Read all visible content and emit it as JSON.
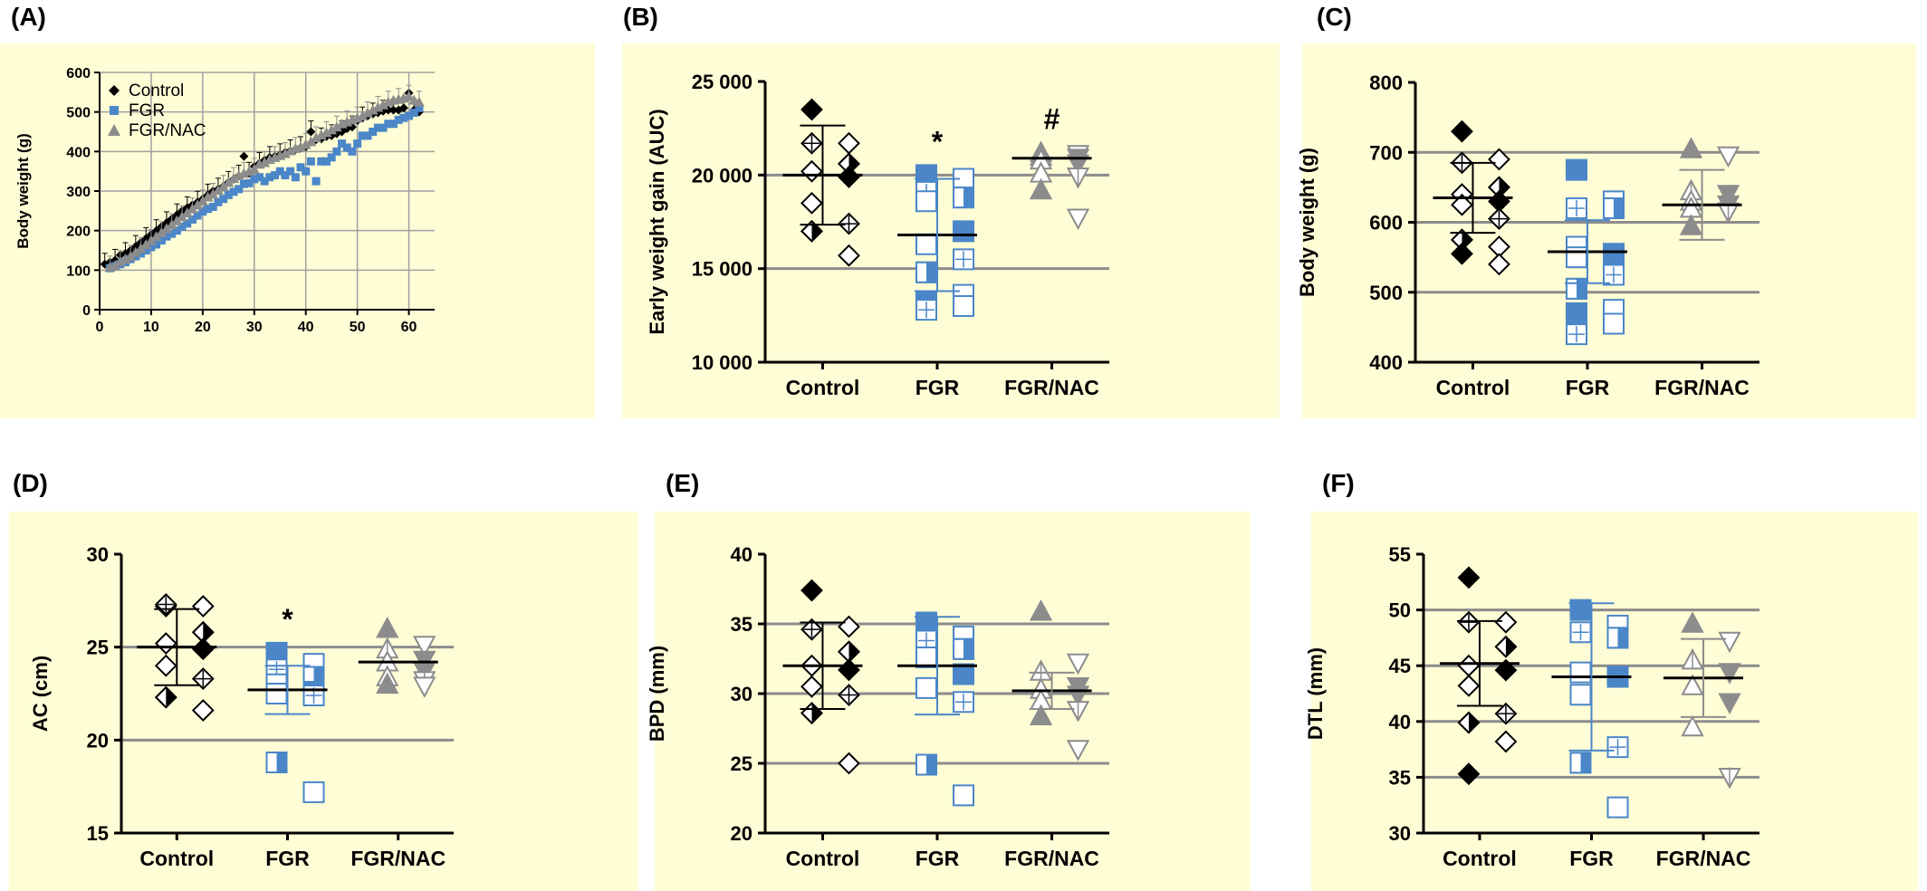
{
  "colors": {
    "panel_bg": "#FFFDD6",
    "grid": "#8C8C8C",
    "control": "#000000",
    "fgr": "#4A86C8",
    "nac": "#8C8C8C"
  },
  "panels": [
    {
      "letter": "(A)"
    },
    {
      "letter": "(B)"
    },
    {
      "letter": "(C)"
    },
    {
      "letter": "(D)"
    },
    {
      "letter": "(E)"
    },
    {
      "letter": "(F)"
    }
  ],
  "chart_data": [
    {
      "panel": "(A)",
      "type": "scatter",
      "ylabel": "Body weight (g)",
      "xlim": [
        0,
        65
      ],
      "ylim": [
        0,
        600
      ],
      "xticks": [
        "0",
        "10",
        "20",
        "30",
        "40",
        "50",
        "60"
      ],
      "yticks": [
        "0",
        "100",
        "200",
        "300",
        "400",
        "500",
        "600"
      ],
      "grid": true,
      "legend": [
        "Control",
        "FGR",
        "FGR/NAC"
      ],
      "legend_position": "top-left",
      "series": [
        {
          "name": "Control",
          "marker": "diamond",
          "x": [
            1,
            2,
            3,
            4,
            5,
            6,
            7,
            8,
            9,
            10,
            11,
            12,
            13,
            14,
            15,
            16,
            17,
            18,
            19,
            20,
            21,
            22,
            23,
            24,
            25,
            26,
            27,
            28,
            29,
            30,
            31,
            32,
            33,
            34,
            35,
            36,
            37,
            38,
            39,
            40,
            41,
            42,
            43,
            44,
            45,
            46,
            47,
            48,
            49,
            50,
            51,
            52,
            53,
            54,
            55,
            56,
            57,
            58,
            59,
            60,
            61,
            62
          ],
          "y": [
            115,
            120,
            125,
            138,
            142,
            150,
            160,
            170,
            180,
            190,
            200,
            210,
            220,
            230,
            240,
            250,
            258,
            265,
            272,
            280,
            290,
            300,
            305,
            312,
            322,
            330,
            338,
            388,
            345,
            362,
            370,
            378,
            385,
            388,
            392,
            398,
            402,
            405,
            410,
            412,
            450,
            430,
            432,
            438,
            440,
            445,
            450,
            458,
            462,
            478,
            485,
            490,
            495,
            498,
            502,
            505,
            505,
            505,
            510,
            548,
            505,
            500
          ]
        },
        {
          "name": "FGR",
          "marker": "square",
          "x": [
            2,
            3,
            4,
            5,
            6,
            7,
            8,
            9,
            10,
            11,
            12,
            13,
            14,
            15,
            16,
            17,
            18,
            19,
            20,
            21,
            22,
            23,
            24,
            25,
            26,
            27,
            28,
            29,
            30,
            31,
            32,
            33,
            34,
            35,
            36,
            37,
            38,
            39,
            40,
            41,
            42,
            43,
            44,
            45,
            46,
            47,
            48,
            49,
            50,
            51,
            52,
            53,
            54,
            55,
            56,
            57,
            58,
            59,
            60,
            61,
            62
          ],
          "y": [
            105,
            110,
            115,
            120,
            128,
            135,
            142,
            150,
            158,
            165,
            175,
            185,
            192,
            200,
            210,
            218,
            228,
            238,
            248,
            255,
            260,
            272,
            280,
            290,
            298,
            305,
            318,
            320,
            330,
            335,
            325,
            335,
            340,
            350,
            340,
            350,
            335,
            360,
            350,
            375,
            325,
            375,
            375,
            385,
            400,
            420,
            410,
            400,
            420,
            440,
            440,
            450,
            460,
            460,
            470,
            470,
            480,
            485,
            490,
            498,
            510
          ]
        },
        {
          "name": "FGR/NAC",
          "marker": "triangle",
          "x": [
            2,
            3,
            4,
            5,
            6,
            7,
            8,
            9,
            10,
            11,
            12,
            13,
            14,
            15,
            16,
            17,
            18,
            19,
            20,
            21,
            22,
            23,
            24,
            25,
            26,
            27,
            28,
            29,
            30,
            31,
            32,
            33,
            34,
            35,
            36,
            37,
            38,
            39,
            40,
            41,
            42,
            43,
            44,
            45,
            46,
            47,
            48,
            49,
            50,
            51,
            52,
            53,
            54,
            55,
            56,
            57,
            58,
            59,
            60,
            61,
            62
          ],
          "y": [
            108,
            112,
            122,
            128,
            135,
            145,
            155,
            165,
            175,
            185,
            195,
            205,
            215,
            225,
            235,
            245,
            255,
            265,
            275,
            285,
            292,
            302,
            312,
            322,
            332,
            340,
            345,
            350,
            355,
            368,
            372,
            380,
            385,
            390,
            395,
            402,
            408,
            412,
            418,
            425,
            435,
            442,
            448,
            455,
            462,
            470,
            475,
            480,
            485,
            490,
            498,
            505,
            512,
            518,
            525,
            530,
            532,
            535,
            540,
            530,
            525
          ]
        }
      ]
    },
    {
      "panel": "(B)",
      "type": "scatter",
      "ylabel": "Early weight gain (AUC)",
      "ylim": [
        10000,
        25000
      ],
      "yticks": [
        "10 000",
        "15 000",
        "20 000",
        "25 000"
      ],
      "categories": [
        "Control",
        "FGR",
        "FGR/NAC"
      ],
      "annotations": [
        "",
        "*",
        "#"
      ],
      "groups": [
        {
          "mean": 20000,
          "sd": 2650,
          "values": [
            23500,
            21700,
            21700,
            20600,
            20200,
            19900,
            18500,
            17400,
            17000,
            15700
          ]
        },
        {
          "mean": 16800,
          "sd": 3000,
          "values": [
            20000,
            19800,
            19100,
            18800,
            18600,
            17000,
            16300,
            15500,
            14800,
            13600,
            13200,
            13000,
            12800
          ]
        },
        {
          "mean": 20900,
          "sd": 0,
          "values": [
            21200,
            21100,
            21000,
            20900,
            20800,
            20600,
            20100,
            19900,
            19200,
            17700
          ]
        }
      ]
    },
    {
      "panel": "(C)",
      "type": "scatter",
      "ylabel": "Body weight (g)",
      "ylim": [
        400,
        800
      ],
      "yticks": [
        "400",
        "500",
        "600",
        "700",
        "800"
      ],
      "categories": [
        "Control",
        "FGR",
        "FGR/NAC"
      ],
      "annotations": [
        "",
        "",
        ""
      ],
      "groups": [
        {
          "mean": 635,
          "sd": 50,
          "values": [
            730,
            690,
            685,
            650,
            640,
            630,
            625,
            605,
            575,
            565,
            555,
            540
          ]
        },
        {
          "mean": 558,
          "sd": 45,
          "values": [
            675,
            630,
            620,
            620,
            565,
            555,
            550,
            525,
            505,
            475,
            470,
            455,
            440
          ]
        },
        {
          "mean": 625,
          "sd": 50,
          "values": [
            705,
            695,
            645,
            640,
            630,
            625,
            620,
            615,
            595
          ]
        }
      ]
    },
    {
      "panel": "(D)",
      "type": "scatter",
      "ylabel": "AC (cm)",
      "ylim": [
        15,
        30
      ],
      "yticks": [
        "15",
        "20",
        "25",
        "30"
      ],
      "categories": [
        "Control",
        "FGR",
        "FGR/NAC"
      ],
      "annotations": [
        "",
        "*",
        ""
      ],
      "groups": [
        {
          "mean": 25.0,
          "sd": 2.05,
          "values": [
            27.2,
            27.2,
            27.3,
            25.8,
            25.2,
            24.9,
            24.0,
            23.3,
            22.3,
            21.6
          ]
        },
        {
          "mean": 22.7,
          "sd": 1.3,
          "values": [
            24.7,
            24.1,
            23.8,
            23.4,
            23.0,
            22.6,
            22.5,
            22.4,
            18.8,
            17.2
          ]
        },
        {
          "mean": 24.2,
          "sd": 0,
          "values": [
            26.0,
            25.1,
            24.9,
            24.3,
            24.2,
            23.7,
            23.4,
            23.2,
            23.0,
            22.9
          ]
        }
      ]
    },
    {
      "panel": "(E)",
      "type": "scatter",
      "ylabel": "BPD (mm)",
      "ylim": [
        20,
        40
      ],
      "yticks": [
        "20",
        "25",
        "30",
        "35",
        "40"
      ],
      "categories": [
        "Control",
        "FGR",
        "FGR/NAC"
      ],
      "annotations": [
        "",
        "",
        ""
      ],
      "groups": [
        {
          "mean": 32.0,
          "sd": 3.1,
          "values": [
            37.4,
            34.8,
            34.6,
            33.0,
            32.0,
            31.7,
            30.5,
            29.9,
            28.6,
            25.0
          ]
        },
        {
          "mean": 32.0,
          "sd": 3.5,
          "values": [
            35.1,
            34.1,
            33.8,
            33.2,
            32.6,
            31.4,
            30.4,
            29.4,
            24.9,
            22.7
          ]
        },
        {
          "mean": 30.2,
          "sd": 1.3,
          "values": [
            35.9,
            32.2,
            31.6,
            30.5,
            30.3,
            29.9,
            29.5,
            28.8,
            28.4,
            26.0
          ]
        }
      ]
    },
    {
      "panel": "(F)",
      "type": "scatter",
      "ylabel": "DTL (mm)",
      "ylim": [
        30,
        55
      ],
      "yticks": [
        "30",
        "35",
        "40",
        "45",
        "50",
        "55"
      ],
      "categories": [
        "Control",
        "FGR",
        "FGR/NAC"
      ],
      "annotations": [
        "",
        "",
        ""
      ],
      "groups": [
        {
          "mean": 45.2,
          "sd": 3.8,
          "values": [
            52.9,
            48.9,
            48.9,
            46.7,
            45.0,
            44.6,
            43.2,
            40.7,
            39.9,
            38.2,
            35.3
          ]
        },
        {
          "mean": 44.0,
          "sd": 6.6,
          "values": [
            50.0,
            48.6,
            48.0,
            47.5,
            44.4,
            44.0,
            42.4,
            37.7,
            36.3,
            32.3
          ]
        },
        {
          "mean": 43.9,
          "sd": 3.5,
          "values": [
            48.8,
            47.2,
            45.5,
            44.4,
            43.2,
            41.7,
            39.5,
            35.0
          ]
        }
      ]
    }
  ]
}
